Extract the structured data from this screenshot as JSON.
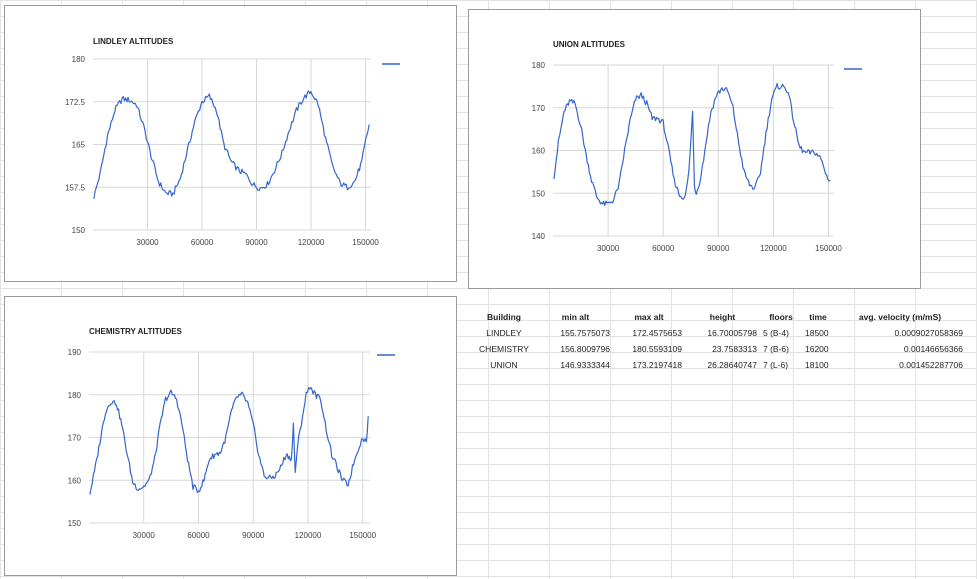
{
  "chart_data": [
    {
      "id": "lindley",
      "type": "line",
      "title": "LINDLEY ALTITUDES",
      "xlabel": "",
      "ylabel": "",
      "xlim": [
        0,
        153000
      ],
      "ylim": [
        150,
        180
      ],
      "x_ticks": [
        30000,
        60000,
        90000,
        120000,
        150000
      ],
      "y_ticks": [
        180,
        172.5,
        165,
        157.5,
        150
      ],
      "grid": true,
      "legend": "top-right",
      "color": "#3366cc",
      "series": [
        {
          "x": [
            500,
            4000,
            8000,
            12000,
            16000,
            20000,
            24000,
            28000,
            32000,
            36000,
            40000,
            44000,
            48000,
            52000,
            56000,
            60000,
            64000,
            68000,
            72000,
            76000,
            80000,
            84000,
            88000,
            92000,
            96000,
            100000,
            104000,
            108000,
            112000,
            116000,
            120000,
            124000,
            128000,
            132000,
            136000,
            140000,
            144000,
            148000,
            150000,
            152000
          ],
          "y": [
            155.8,
            160,
            166.5,
            171,
            173,
            172.8,
            172,
            168,
            163,
            158.5,
            156.5,
            156.3,
            159,
            164,
            169,
            172.5,
            173.5,
            171,
            165,
            162,
            160.5,
            159.8,
            158,
            157.3,
            158,
            160.5,
            163.5,
            167.5,
            171,
            173.2,
            174.3,
            172,
            166,
            161,
            158.2,
            157.5,
            158.5,
            162,
            165.5,
            168.5
          ]
        }
      ]
    },
    {
      "id": "union",
      "type": "line",
      "title": "UNION ALTITUDES",
      "xlabel": "",
      "ylabel": "",
      "xlim": [
        0,
        153000
      ],
      "ylim": [
        140,
        180
      ],
      "x_ticks": [
        30000,
        60000,
        90000,
        120000,
        150000
      ],
      "y_ticks": [
        180,
        170,
        160,
        150,
        140
      ],
      "grid": true,
      "legend": "top-right",
      "color": "#3366cc",
      "series": [
        {
          "x": [
            500,
            3000,
            6000,
            9000,
            12000,
            15000,
            18000,
            21000,
            24000,
            27000,
            30000,
            33000,
            36000,
            39000,
            42000,
            45000,
            48000,
            51000,
            54000,
            57000,
            60000,
            63000,
            66000,
            69000,
            72000,
            74000,
            76000,
            77000,
            78000,
            80000,
            82000,
            84000,
            86000,
            89000,
            92000,
            95000,
            98000,
            101000,
            104000,
            107000,
            110000,
            113000,
            116000,
            119000,
            122000,
            125000,
            128000,
            131000,
            134000,
            137000,
            140000,
            143000,
            146000,
            149000,
            151000
          ],
          "y": [
            154,
            162,
            169,
            171.5,
            171,
            166,
            159,
            153,
            149,
            147.5,
            147.5,
            148.5,
            152,
            160,
            167,
            172,
            173,
            171,
            167.5,
            167.5,
            166.5,
            160,
            153,
            149.5,
            149,
            155,
            169,
            152,
            150,
            153,
            158,
            164,
            169,
            173,
            174.5,
            174,
            170,
            162,
            155,
            152,
            151,
            155,
            164,
            172,
            175,
            175,
            174,
            167,
            161,
            159.5,
            159.5,
            159.5,
            158,
            154,
            153
          ]
        }
      ]
    },
    {
      "id": "chemistry",
      "type": "line",
      "title": "CHEMISTRY ALTITUDES",
      "xlabel": "",
      "ylabel": "",
      "xlim": [
        0,
        154000
      ],
      "ylim": [
        150,
        190
      ],
      "x_ticks": [
        30000,
        60000,
        90000,
        120000,
        150000
      ],
      "y_ticks": [
        190,
        180,
        170,
        160,
        150
      ],
      "grid": true,
      "legend": "top-right",
      "color": "#3366cc",
      "series": [
        {
          "x": [
            500,
            3000,
            6000,
            9000,
            12000,
            15000,
            18000,
            21000,
            24000,
            27000,
            30000,
            33000,
            36000,
            39000,
            42000,
            45000,
            48000,
            51000,
            54000,
            57000,
            60000,
            63000,
            66000,
            69000,
            72000,
            75000,
            78000,
            81000,
            84000,
            87000,
            90000,
            93000,
            96000,
            99000,
            102000,
            105000,
            108000,
            111000,
            112000,
            113000,
            115000,
            117000,
            119000,
            121000,
            124000,
            127000,
            130000,
            133000,
            136000,
            139000,
            142000,
            145000,
            148000,
            150000,
            152000,
            153000
          ],
          "y": [
            157,
            162,
            169,
            176,
            178.5,
            178,
            173,
            166,
            159.5,
            158,
            158.5,
            160,
            165,
            173,
            179,
            180.5,
            179,
            173,
            165,
            158.5,
            157.5,
            160,
            165,
            166,
            166.5,
            170,
            176,
            179.5,
            180,
            178,
            173,
            166,
            161,
            160.5,
            161,
            163,
            166,
            165,
            173,
            162,
            170,
            175,
            180,
            182,
            180,
            179,
            172,
            166,
            163,
            160,
            159,
            164,
            168,
            170,
            169,
            175
          ]
        }
      ]
    }
  ],
  "table": {
    "headers": [
      "Building",
      "min alt",
      "max alt",
      "height",
      "floors",
      "time",
      "avg. velocity (m/mS)"
    ],
    "rows": [
      [
        "LINDLEY",
        "155.7575073",
        "172.4575653",
        "16.70005798",
        "5 (B-4)",
        "18500",
        "0.0009027058369"
      ],
      [
        "CHEMISTRY",
        "156.8009796",
        "180.5593109",
        "23.7583313",
        "7 (B-6)",
        "16200",
        "0.00146656366"
      ],
      [
        "UNION",
        "146.9333344",
        "173.2197418",
        "26.28640747",
        "7 (L-6)",
        "18100",
        "0.001452287706"
      ]
    ]
  }
}
